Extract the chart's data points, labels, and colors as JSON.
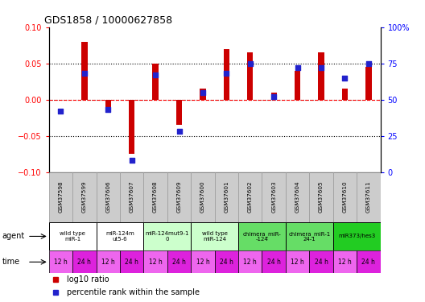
{
  "title": "GDS1858 / 10000627858",
  "samples": [
    "GSM37598",
    "GSM37599",
    "GSM37606",
    "GSM37607",
    "GSM37608",
    "GSM37609",
    "GSM37600",
    "GSM37601",
    "GSM37602",
    "GSM37603",
    "GSM37604",
    "GSM37605",
    "GSM37610",
    "GSM37611"
  ],
  "log10_ratio": [
    0.0,
    0.08,
    -0.01,
    -0.075,
    0.05,
    -0.035,
    0.015,
    0.07,
    0.065,
    0.01,
    0.04,
    0.065,
    0.015,
    0.045
  ],
  "pct_rank": [
    42,
    68,
    43,
    8,
    67,
    28,
    55,
    68,
    75,
    52,
    72,
    72,
    65,
    75
  ],
  "ylim_left": [
    -0.1,
    0.1
  ],
  "ylim_right": [
    0,
    100
  ],
  "yticks_left": [
    -0.1,
    -0.05,
    0.0,
    0.05,
    0.1
  ],
  "yticks_right": [
    0,
    25,
    50,
    75,
    100
  ],
  "bar_color": "#cc0000",
  "dot_color": "#2222cc",
  "agent_groups": [
    {
      "label": "wild type\nmiR-1",
      "cols": [
        0,
        1
      ],
      "color": "#ffffff"
    },
    {
      "label": "miR-124m\nut5-6",
      "cols": [
        2,
        3
      ],
      "color": "#ffffff"
    },
    {
      "label": "miR-124mut9-1\n0",
      "cols": [
        4,
        5
      ],
      "color": "#ccffcc"
    },
    {
      "label": "wild type\nmiR-124",
      "cols": [
        6,
        7
      ],
      "color": "#ccffcc"
    },
    {
      "label": "chimera_miR-\n-124",
      "cols": [
        8,
        9
      ],
      "color": "#66dd66"
    },
    {
      "label": "chimera_miR-1\n24-1",
      "cols": [
        10,
        11
      ],
      "color": "#66dd66"
    },
    {
      "label": "miR373/hes3",
      "cols": [
        12,
        13
      ],
      "color": "#22cc22"
    }
  ],
  "time_labels": [
    "12 h",
    "24 h",
    "12 h",
    "24 h",
    "12 h",
    "24 h",
    "12 h",
    "24 h",
    "12 h",
    "24 h",
    "12 h",
    "24 h",
    "12 h",
    "24 h"
  ],
  "time_color_12": "#ee66ee",
  "time_color_24": "#dd22dd"
}
